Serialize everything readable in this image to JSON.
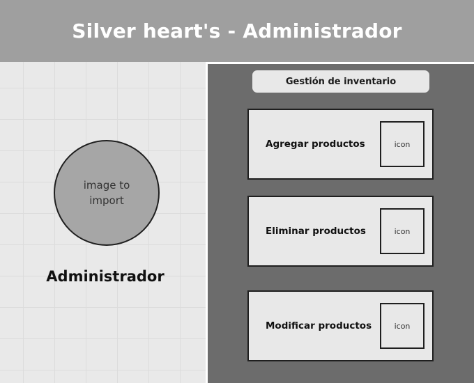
{
  "header": {
    "title": "Silver heart's - Administrador"
  },
  "profile": {
    "image_placeholder": "image to import",
    "name": "Administrador"
  },
  "inventory": {
    "section_title": "Gestión de inventario",
    "actions": [
      {
        "label": "Agregar productos",
        "icon_label": "icon"
      },
      {
        "label": "Eliminar productos",
        "icon_label": "icon"
      },
      {
        "label": "Modificar productos",
        "icon_label": "icon"
      }
    ]
  },
  "colors": {
    "header_bg": "#9f9f9f",
    "left_panel_bg": "#e9e9e9",
    "right_panel_bg": "#6c6c6c",
    "card_bg": "#e8e8e8",
    "avatar_bg": "#a6a6a6"
  }
}
